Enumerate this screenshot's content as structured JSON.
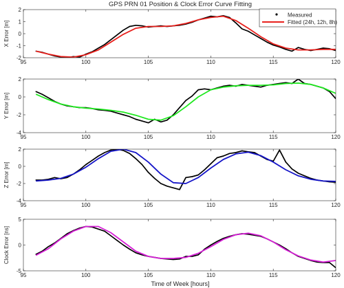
{
  "figure": {
    "title": "GPS PRN 01 Position & Clock Error Curve Fitting",
    "xlabel": "Time of Week [hours]"
  },
  "legend": {
    "measured": "Measured",
    "fitted": "Fitted (24h, 12h, 8h)"
  },
  "chart_data": [
    {
      "type": "line",
      "ylabel": "X Error [m]",
      "xlim": [
        95,
        120
      ],
      "ylim": [
        -2,
        2
      ],
      "xticks": [
        95,
        100,
        105,
        110,
        115,
        120
      ],
      "yticks": [
        -2,
        -1,
        0,
        1,
        2
      ],
      "legend": "top-right",
      "grid": false,
      "series": [
        {
          "name": "Measured",
          "color": "#000000",
          "x": [
            96.0,
            96.5,
            97.0,
            97.5,
            98.0,
            98.5,
            99.0,
            99.5,
            100.0,
            100.5,
            101.0,
            101.5,
            102.0,
            102.5,
            103.0,
            103.5,
            104.0,
            104.5,
            105.0,
            105.5,
            106.0,
            106.5,
            107.0,
            107.5,
            108.0,
            108.5,
            109.0,
            109.5,
            110.0,
            110.5,
            111.0,
            111.5,
            112.0,
            112.5,
            113.0,
            113.5,
            114.0,
            114.5,
            115.0,
            115.5,
            116.0,
            116.5,
            117.0,
            117.5,
            118.0,
            118.5,
            119.0,
            119.5,
            120.0
          ],
          "y": [
            -1.45,
            -1.55,
            -1.7,
            -1.85,
            -1.95,
            -2.0,
            -1.9,
            -1.95,
            -1.7,
            -1.5,
            -1.2,
            -0.9,
            -0.5,
            -0.1,
            0.3,
            0.6,
            0.7,
            0.65,
            0.55,
            0.6,
            0.65,
            0.6,
            0.65,
            0.7,
            0.8,
            0.95,
            1.15,
            1.3,
            1.45,
            1.4,
            1.5,
            1.35,
            0.9,
            0.4,
            0.2,
            -0.1,
            -0.4,
            -0.7,
            -0.95,
            -1.1,
            -1.3,
            -1.45,
            -1.15,
            -1.3,
            -1.4,
            -1.3,
            -1.2,
            -1.25,
            -1.4
          ]
        },
        {
          "name": "Fitted (24h, 12h, 8h)",
          "color": "#e8201c",
          "x": [
            96.0,
            97.0,
            98.0,
            99.0,
            100.0,
            101.0,
            102.0,
            103.0,
            104.0,
            105.0,
            106.0,
            107.0,
            108.0,
            109.0,
            110.0,
            111.0,
            112.0,
            113.0,
            114.0,
            115.0,
            116.0,
            117.0,
            118.0,
            119.0,
            120.0
          ],
          "y": [
            -1.45,
            -1.7,
            -1.9,
            -1.95,
            -1.75,
            -1.35,
            -0.7,
            -0.05,
            0.45,
            0.6,
            0.6,
            0.65,
            0.85,
            1.15,
            1.35,
            1.45,
            1.1,
            0.45,
            -0.25,
            -0.85,
            -1.2,
            -1.35,
            -1.35,
            -1.3,
            -1.3
          ]
        }
      ]
    },
    {
      "type": "line",
      "ylabel": "Y Error [m]",
      "xlim": [
        95,
        120
      ],
      "ylim": [
        -4,
        2
      ],
      "xticks": [
        95,
        100,
        105,
        110,
        115,
        120
      ],
      "yticks": [
        -4,
        -2,
        0,
        2
      ],
      "grid": false,
      "series": [
        {
          "name": "Measured",
          "color": "#000000",
          "x": [
            96.0,
            96.5,
            97.0,
            97.5,
            98.0,
            98.5,
            99.0,
            99.5,
            100.0,
            100.5,
            101.0,
            101.5,
            102.0,
            102.5,
            103.0,
            103.5,
            104.0,
            104.5,
            105.0,
            105.5,
            106.0,
            106.5,
            107.0,
            107.5,
            108.0,
            108.5,
            109.0,
            109.5,
            110.0,
            110.5,
            111.0,
            111.5,
            112.0,
            112.5,
            113.0,
            113.5,
            114.0,
            114.5,
            115.0,
            115.5,
            116.0,
            116.5,
            117.0,
            117.5,
            118.0,
            118.5,
            119.0,
            119.5,
            120.0
          ],
          "y": [
            0.6,
            0.3,
            -0.1,
            -0.5,
            -0.8,
            -1.0,
            -1.1,
            -1.2,
            -1.2,
            -1.3,
            -1.45,
            -1.5,
            -1.6,
            -1.8,
            -2.0,
            -2.2,
            -2.5,
            -2.7,
            -2.9,
            -2.5,
            -2.8,
            -2.6,
            -2.0,
            -1.2,
            -0.4,
            0.1,
            0.8,
            0.9,
            0.8,
            1.0,
            1.2,
            1.3,
            1.2,
            1.4,
            1.3,
            1.2,
            1.1,
            1.3,
            1.4,
            1.5,
            1.6,
            1.5,
            2.0,
            1.5,
            1.4,
            1.2,
            1.0,
            0.6,
            -0.2
          ]
        },
        {
          "name": "Fitted (24h, 12h, 8h)",
          "color": "#1fe81f",
          "x": [
            96.0,
            97.0,
            98.0,
            99.0,
            100.0,
            101.0,
            102.0,
            103.0,
            104.0,
            105.0,
            106.0,
            107.0,
            108.0,
            109.0,
            110.0,
            111.0,
            112.0,
            113.0,
            114.0,
            115.0,
            116.0,
            117.0,
            118.0,
            119.0,
            120.0
          ],
          "y": [
            0.3,
            -0.3,
            -0.8,
            -1.1,
            -1.25,
            -1.35,
            -1.5,
            -1.7,
            -2.05,
            -2.5,
            -2.6,
            -2.1,
            -1.1,
            0.0,
            0.8,
            1.1,
            1.25,
            1.3,
            1.3,
            1.35,
            1.5,
            1.55,
            1.4,
            1.0,
            0.4
          ]
        }
      ]
    },
    {
      "type": "line",
      "ylabel": "Z Error [m]",
      "xlim": [
        95,
        120
      ],
      "ylim": [
        -4,
        2
      ],
      "xticks": [
        95,
        100,
        105,
        110,
        115,
        120
      ],
      "yticks": [
        -4,
        -2,
        0,
        2
      ],
      "grid": false,
      "series": [
        {
          "name": "Measured",
          "color": "#000000",
          "x": [
            96.0,
            96.5,
            97.0,
            97.5,
            98.0,
            98.5,
            99.0,
            99.5,
            100.0,
            100.5,
            101.0,
            101.5,
            102.0,
            102.5,
            103.0,
            103.5,
            104.0,
            104.5,
            105.0,
            105.5,
            106.0,
            106.5,
            107.0,
            107.5,
            108.0,
            108.5,
            109.0,
            109.5,
            110.0,
            110.5,
            111.0,
            111.5,
            112.0,
            112.5,
            113.0,
            113.5,
            114.0,
            114.5,
            115.0,
            115.5,
            116.0,
            116.5,
            117.0,
            117.5,
            118.0,
            118.5,
            119.0,
            119.5,
            120.0
          ],
          "y": [
            -1.6,
            -1.6,
            -1.5,
            -1.3,
            -1.45,
            -1.3,
            -0.9,
            -0.4,
            0.2,
            0.7,
            1.2,
            1.6,
            1.9,
            2.0,
            1.85,
            1.5,
            0.9,
            0.2,
            -0.7,
            -1.4,
            -2.0,
            -2.3,
            -2.5,
            -2.7,
            -1.3,
            -1.2,
            -1.0,
            -0.4,
            0.3,
            1.0,
            1.2,
            1.5,
            1.6,
            1.8,
            1.7,
            1.6,
            1.2,
            0.8,
            0.6,
            1.9,
            0.5,
            -0.3,
            -0.8,
            -1.1,
            -1.4,
            -1.6,
            -1.7,
            -1.8,
            -1.85
          ]
        },
        {
          "name": "Fitted (24h, 12h, 8h)",
          "color": "#1515c8",
          "x": [
            96.0,
            97.0,
            98.0,
            99.0,
            100.0,
            101.0,
            102.0,
            103.0,
            104.0,
            105.0,
            106.0,
            107.0,
            108.0,
            109.0,
            110.0,
            111.0,
            112.0,
            113.0,
            114.0,
            115.0,
            116.0,
            117.0,
            118.0,
            119.0,
            120.0
          ],
          "y": [
            -1.7,
            -1.6,
            -1.4,
            -0.9,
            -0.1,
            0.9,
            1.75,
            2.0,
            1.6,
            0.5,
            -0.9,
            -1.9,
            -2.0,
            -1.3,
            -0.2,
            0.8,
            1.45,
            1.65,
            1.25,
            0.5,
            -0.4,
            -1.1,
            -1.5,
            -1.7,
            -1.75
          ]
        }
      ]
    },
    {
      "type": "line",
      "ylabel": "Clock Error [ns]",
      "xlim": [
        95,
        120
      ],
      "ylim": [
        -5,
        5
      ],
      "xticks": [
        95,
        100,
        105,
        110,
        115,
        120
      ],
      "yticks": [
        -5,
        0,
        5
      ],
      "grid": false,
      "series": [
        {
          "name": "Measured",
          "color": "#000000",
          "x": [
            96.0,
            96.5,
            97.0,
            97.5,
            98.0,
            98.5,
            99.0,
            99.5,
            100.0,
            100.5,
            101.0,
            101.5,
            102.0,
            102.5,
            103.0,
            103.5,
            104.0,
            104.5,
            105.0,
            105.5,
            106.0,
            106.5,
            107.0,
            107.5,
            108.0,
            108.5,
            109.0,
            109.5,
            110.0,
            110.5,
            111.0,
            111.5,
            112.0,
            112.5,
            113.0,
            113.5,
            114.0,
            114.5,
            115.0,
            115.5,
            116.0,
            116.5,
            117.0,
            117.5,
            118.0,
            118.5,
            119.0,
            119.5,
            120.0
          ],
          "y": [
            -1.8,
            -1.2,
            -0.3,
            0.4,
            1.3,
            2.2,
            2.8,
            3.3,
            3.6,
            3.5,
            3.1,
            2.7,
            1.8,
            0.9,
            0.0,
            -0.8,
            -1.5,
            -1.9,
            -2.2,
            -2.4,
            -2.6,
            -2.7,
            -2.8,
            -2.7,
            -2.2,
            -2.2,
            -1.9,
            -0.8,
            0.0,
            0.7,
            1.3,
            1.7,
            2.0,
            2.2,
            2.1,
            1.9,
            1.7,
            1.2,
            0.6,
            0.0,
            -0.7,
            -1.5,
            -2.2,
            -2.6,
            -3.0,
            -3.3,
            -3.4,
            -3.4,
            -4.4
          ]
        },
        {
          "name": "Fitted (24h, 12h, 8h)",
          "color": "#d61fd6",
          "x": [
            96.0,
            97.0,
            98.0,
            99.0,
            100.0,
            101.0,
            102.0,
            103.0,
            104.0,
            105.0,
            106.0,
            107.0,
            108.0,
            109.0,
            110.0,
            111.0,
            112.0,
            113.0,
            114.0,
            115.0,
            116.0,
            117.0,
            118.0,
            119.0,
            120.0
          ],
          "y": [
            -2.0,
            -0.7,
            1.2,
            2.7,
            3.6,
            3.6,
            2.4,
            0.6,
            -1.2,
            -2.2,
            -2.6,
            -2.6,
            -2.4,
            -1.6,
            -0.3,
            1.1,
            2.0,
            2.3,
            1.8,
            0.6,
            -0.9,
            -2.1,
            -2.9,
            -3.3,
            -3.0
          ]
        }
      ]
    }
  ]
}
